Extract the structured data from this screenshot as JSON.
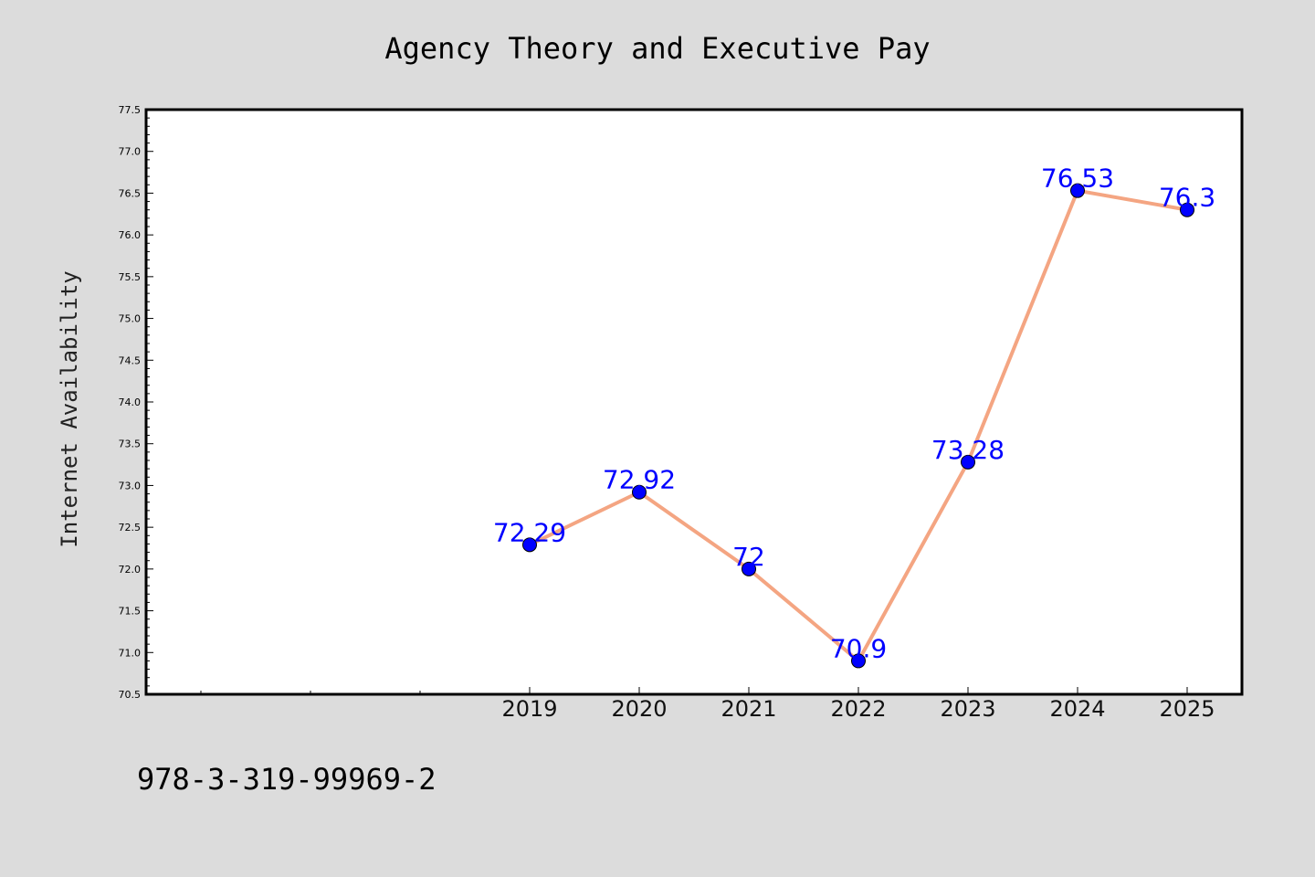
{
  "colors": {
    "page_background": "#dcdcdc",
    "plot_background": "#ffffff",
    "line": "#f4a582",
    "marker": "#0000ff",
    "label": "#0000ff",
    "axis": "#000000"
  },
  "isbn": "978-3-319-99969-2",
  "chart_data": {
    "type": "line",
    "title": "Agency Theory and Executive Pay",
    "xlabel": "",
    "ylabel": "Internet Availability",
    "ylim": [
      70.5,
      77.5
    ],
    "xlim": [
      2015.5,
      2025.5
    ],
    "x_tick_labels": [
      "2019",
      "2020",
      "2021",
      "2022",
      "2023",
      "2024",
      "2025"
    ],
    "x_minor_ticks": [
      2016,
      2017,
      2018
    ],
    "y_ticks": [
      70.5,
      71.0,
      71.5,
      72.0,
      72.5,
      73.0,
      73.5,
      74.0,
      74.5,
      75.0,
      75.5,
      76.0,
      76.5,
      77.0,
      77.5
    ],
    "y_tick_labels": [
      "70.5",
      "71.0",
      "71.5",
      "72.0",
      "72.5",
      "73.0",
      "73.5",
      "74.0",
      "74.5",
      "75.0",
      "75.5",
      "76.0",
      "76.5",
      "77.0",
      "77.5"
    ],
    "grid": false,
    "series": [
      {
        "x": [
          2019,
          2020,
          2021,
          2022,
          2023,
          2024,
          2025
        ],
        "values": [
          72.29,
          72.92,
          72.0,
          70.9,
          73.28,
          76.53,
          76.3
        ],
        "labels": [
          "72.29",
          "72.92",
          "72",
          "70.9",
          "73.28",
          "76.53",
          "76.3"
        ]
      }
    ]
  }
}
